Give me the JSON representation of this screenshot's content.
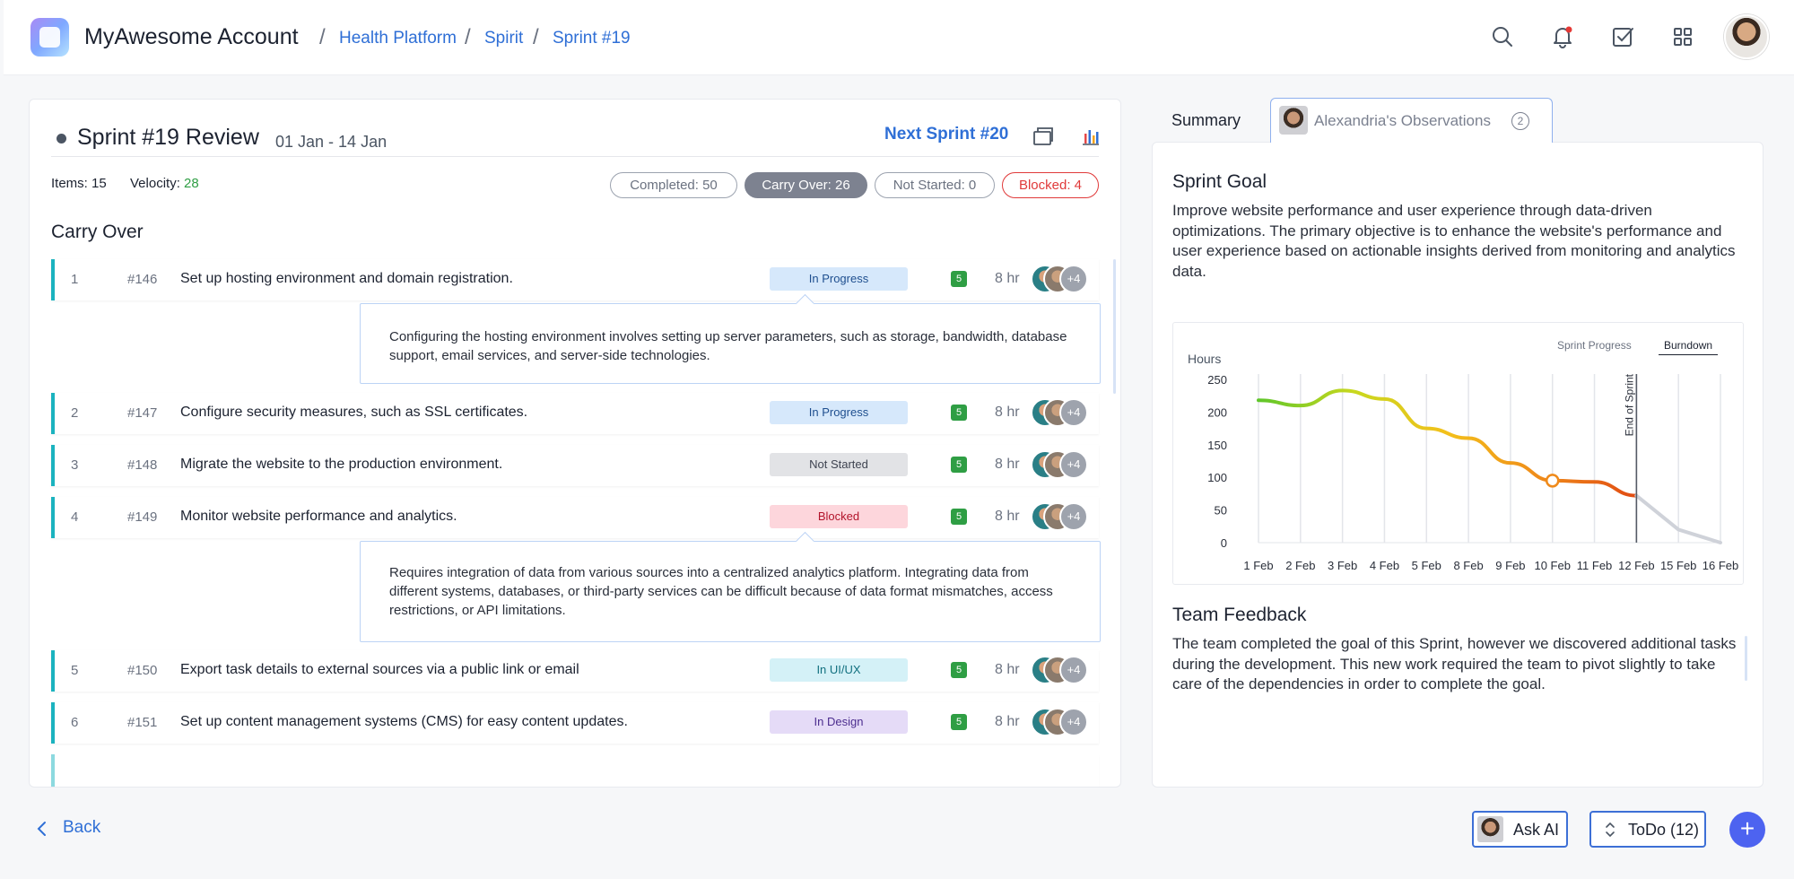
{
  "header": {
    "app_title": "MyAwesome Account",
    "breadcrumbs": [
      "Health Platform",
      "Spirit",
      "Sprint #19"
    ],
    "separator": "/",
    "icons": [
      "search-icon",
      "bell-icon",
      "checklist-icon",
      "apps-grid-icon"
    ],
    "notification_dot_color": "#e53935"
  },
  "sprint": {
    "title": "Sprint #19 Review",
    "dates": "01 Jan - 14 Jan",
    "next_sprint": "Next Sprint #20",
    "items_label": "Items: 15",
    "velocity_label": "Velocity:",
    "velocity_value": "28",
    "filters": {
      "completed": "Completed: 50",
      "carry_over": "Carry Over: 26",
      "not_started": "Not Started: 0",
      "blocked": "Blocked: 4"
    },
    "section_title": "Carry Over"
  },
  "tasks": [
    {
      "num": "1",
      "id": "#146",
      "text": "Set up hosting environment and domain registration.",
      "status": "In Progress",
      "points": "5",
      "hours": "8 hr",
      "more": "+4",
      "detail": "Configuring the hosting environment involves setting up server parameters, such as storage, bandwidth, database support, email services, and server-side technologies."
    },
    {
      "num": "2",
      "id": "#147",
      "text": "Configure security measures, such as SSL certificates.",
      "status": "In Progress",
      "points": "5",
      "hours": "8 hr",
      "more": "+4"
    },
    {
      "num": "3",
      "id": "#148",
      "text": "Migrate the website to the production environment.",
      "status": "Not Started",
      "points": "5",
      "hours": "8 hr",
      "more": "+4"
    },
    {
      "num": "4",
      "id": "#149",
      "text": "Monitor website performance and analytics.",
      "status": "Blocked",
      "points": "5",
      "hours": "8 hr",
      "more": "+4",
      "detail": "Requires integration of data from various sources into a centralized analytics platform. Integrating data from different systems, databases, or third-party services can be difficult because of data format mismatches, access restrictions, or API limitations."
    },
    {
      "num": "5",
      "id": "#150",
      "text": "Export task details to external sources via a public link or email",
      "status": "In UI/UX",
      "points": "5",
      "hours": "8 hr",
      "more": "+4"
    },
    {
      "num": "6",
      "id": "#151",
      "text": "Set up content management systems (CMS) for easy content updates.",
      "status": "In Design",
      "points": "5",
      "hours": "8 hr",
      "more": "+4"
    }
  ],
  "status_colors": {
    "In Progress": {
      "bg": "#d6e8fb",
      "fg": "#1f4f8f"
    },
    "Not Started": {
      "bg": "#e2e3e6",
      "fg": "#3f4451"
    },
    "Blocked": {
      "bg": "#fdd6dc",
      "fg": "#b3142b"
    },
    "In UI/UX": {
      "bg": "#d4f1f7",
      "fg": "#11707f"
    },
    "In Design": {
      "bg": "#e5dbf7",
      "fg": "#4c2d8f"
    }
  },
  "right_panel": {
    "tab_summary": "Summary",
    "tab_observations": "Alexandria's Observations",
    "observations_count": "2",
    "goal_title": "Sprint Goal",
    "goal_text": "Improve website performance and user experience through data-driven optimizations. The primary objective is to enhance the website's performance and user experience based on actionable insights derived from monitoring and analytics data.",
    "feedback_title": "Team Feedback",
    "feedback_text": "The team completed the goal of this Sprint, however we discovered additional tasks during the development. This new work required the team to pivot slightly to take care of the dependencies in order to complete the goal."
  },
  "chart_tabs": {
    "progress": "Sprint Progress",
    "burndown": "Burndown",
    "selected": "Burndown"
  },
  "chart_data": {
    "type": "line",
    "ylabel": "Hours",
    "ylim": [
      0,
      250
    ],
    "yticks": [
      0,
      50,
      100,
      150,
      200,
      250
    ],
    "categories": [
      "1 Feb",
      "2 Feb",
      "3 Feb",
      "4 Feb",
      "5 Feb",
      "8 Feb",
      "9 Feb",
      "10 Feb",
      "11 Feb",
      "12 Feb",
      "15 Feb",
      "16 Feb"
    ],
    "series": [
      {
        "values": [
          218,
          210,
          233,
          220,
          175,
          160,
          122,
          95,
          93,
          72,
          null,
          null
        ]
      },
      {
        "values": [
          null,
          null,
          null,
          null,
          null,
          null,
          null,
          null,
          null,
          72,
          20,
          0
        ]
      }
    ],
    "marker_index": 7,
    "annotation": {
      "label": "End of Sprint",
      "category": "12 Feb"
    },
    "grid": true,
    "gradient_colors": [
      "#5fc62a",
      "#c8d81f",
      "#f3c01b",
      "#ef8a1a",
      "#e14b12"
    ],
    "projection_color": "#cfd2d9"
  },
  "footer": {
    "back_label": "Back",
    "ask_ai_label": "Ask AI",
    "todo_label": "ToDo (12)",
    "fab_label": "+"
  }
}
